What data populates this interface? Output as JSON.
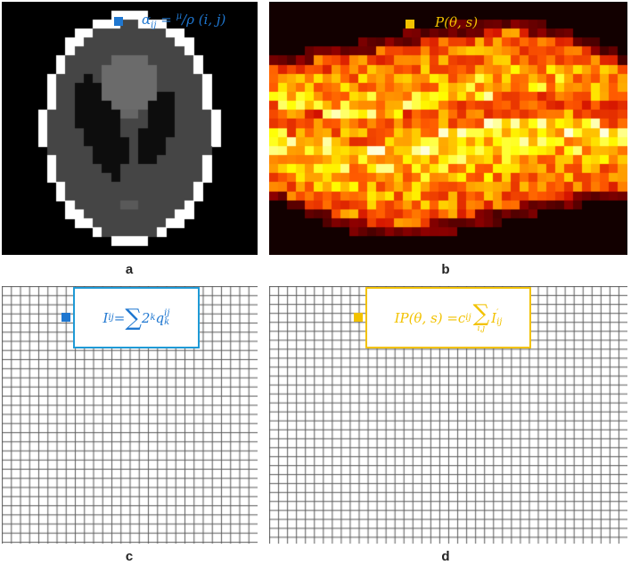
{
  "panels": {
    "a": {
      "label": "a",
      "legend_color": "#1f77d0",
      "formula": {
        "lhs": "α",
        "lhs_sub": "ij",
        "eq": " = ",
        "num": "μ",
        "den": "ρ (i, j)"
      }
    },
    "b": {
      "label": "b",
      "legend_color": "#f2c200",
      "formula": "P(θ, s)"
    },
    "c": {
      "label": "c",
      "legend_color": "#1f77d0",
      "formula": {
        "lhs": "I",
        "lhs_sub": "ij",
        "eq": " = ",
        "sum": "∑",
        "term": "2",
        "term_sup": "k",
        "q": "q",
        "q_sup": "ij",
        "q_sub": "k"
      }
    },
    "d": {
      "label": "d",
      "legend_color": "#f2c200",
      "formula": {
        "lhs": "IP(θ, s) = ",
        "c": "c",
        "c_sub": "ij",
        "sum": "∑",
        "sum_sub": "i,j",
        "term": "I",
        "term_sup": "′",
        "term_sub": "ij"
      }
    }
  },
  "colors": {
    "blue": "#1f77d0",
    "gold": "#f2c200",
    "grid_line": "#5a5a5a"
  }
}
